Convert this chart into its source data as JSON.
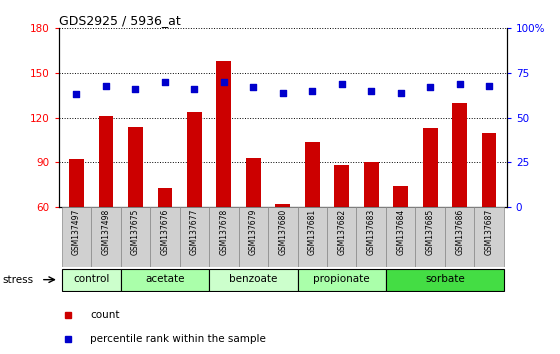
{
  "title": "GDS2925 / 5936_at",
  "samples": [
    "GSM137497",
    "GSM137498",
    "GSM137675",
    "GSM137676",
    "GSM137677",
    "GSM137678",
    "GSM137679",
    "GSM137680",
    "GSM137681",
    "GSM137682",
    "GSM137683",
    "GSM137684",
    "GSM137685",
    "GSM137686",
    "GSM137687"
  ],
  "counts": [
    92,
    121,
    114,
    73,
    124,
    158,
    93,
    62,
    104,
    88,
    90,
    74,
    113,
    130,
    110
  ],
  "percentiles": [
    63,
    68,
    66,
    70,
    66,
    70,
    67,
    64,
    65,
    69,
    65,
    64,
    67,
    69,
    68
  ],
  "ylim_left": [
    60,
    180
  ],
  "ylim_right": [
    0,
    100
  ],
  "yticks_left": [
    60,
    90,
    120,
    150,
    180
  ],
  "yticks_right": [
    0,
    25,
    50,
    75,
    100
  ],
  "groups": [
    {
      "label": "control",
      "start": 0,
      "end": 2
    },
    {
      "label": "acetate",
      "start": 2,
      "end": 5
    },
    {
      "label": "benzoate",
      "start": 5,
      "end": 8
    },
    {
      "label": "propionate",
      "start": 8,
      "end": 11
    },
    {
      "label": "sorbate",
      "start": 11,
      "end": 15
    }
  ],
  "group_colors": [
    "#ccffcc",
    "#aaffaa",
    "#ccffcc",
    "#aaffaa",
    "#44dd44"
  ],
  "bar_color": "#cc0000",
  "dot_color": "#0000cc",
  "bar_width": 0.5,
  "stress_label": "stress"
}
